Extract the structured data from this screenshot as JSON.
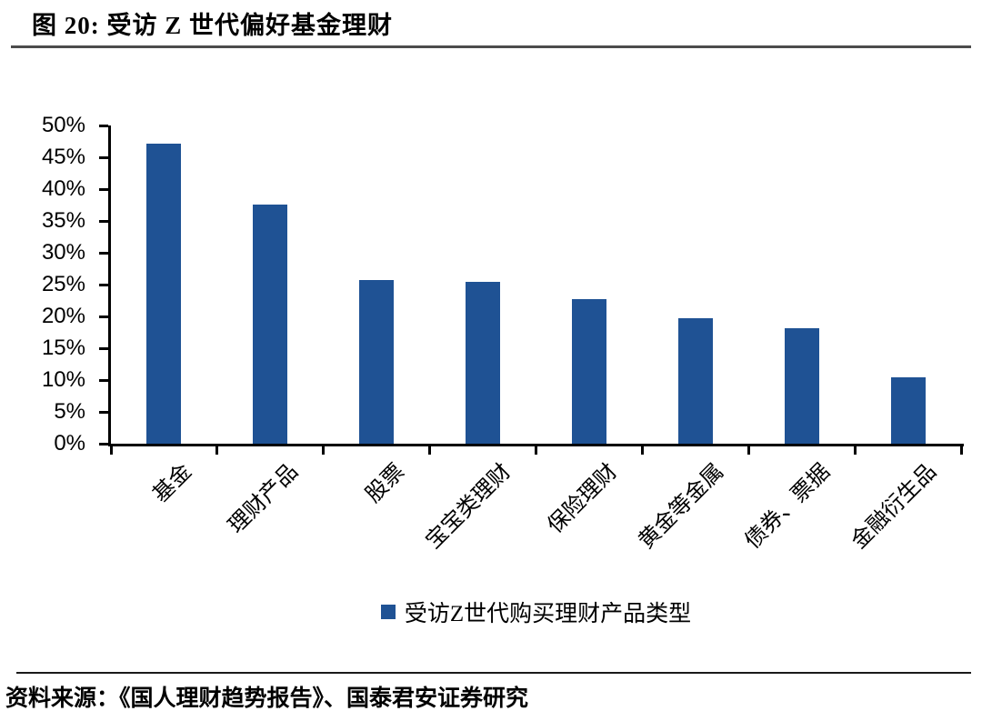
{
  "page": {
    "title": "图 20:  受访 Z 世代偏好基金理财",
    "source": "资料来源：《国人理财趋势报告》、国泰君安证券研究"
  },
  "chart_data": {
    "type": "bar",
    "title": "受访 Z 世代偏好基金理财",
    "categories": [
      "基金",
      "理财产品",
      "股票",
      "宝宝类理财",
      "保险理财",
      "黄金等金属",
      "债券、票据",
      "金融衍生品"
    ],
    "values": [
      47.2,
      37.6,
      25.7,
      25.4,
      22.7,
      19.7,
      18.2,
      10.4
    ],
    "unit": "%",
    "legend": [
      "受访Z世代购买理财产品类型"
    ],
    "legend_position": "bottom",
    "xlabel": "",
    "ylabel": "",
    "ylim": [
      0,
      50
    ],
    "ytick_step": 5,
    "ytick_labels": [
      "0%",
      "5%",
      "10%",
      "15%",
      "20%",
      "25%",
      "30%",
      "35%",
      "40%",
      "45%",
      "50%"
    ],
    "grid": false,
    "colors": {
      "bar": "#1F5294",
      "axis": "#000000",
      "text": "#000000"
    }
  }
}
